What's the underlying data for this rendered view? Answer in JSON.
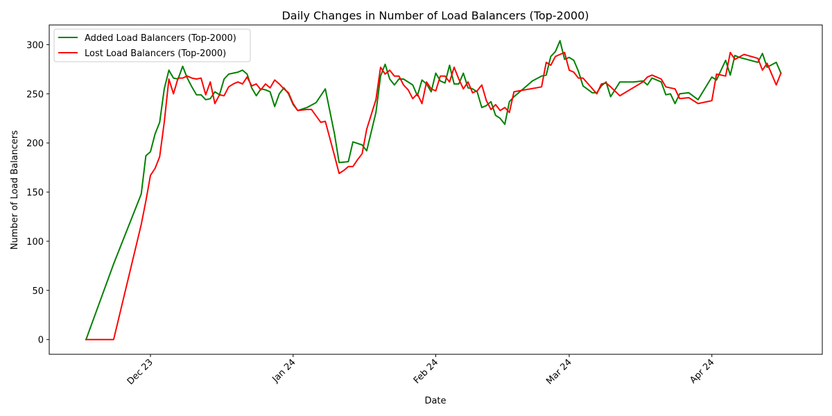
{
  "chart_data": {
    "type": "line",
    "title": "Daily Changes in Number of Load Balancers (Top-2000)",
    "xlabel": "Date",
    "ylabel": "Number of Load Balancers",
    "grid": false,
    "legend_position": "top-left",
    "xlim": [
      "2023-11-09",
      "2024-04-25"
    ],
    "ylim": [
      -15,
      320
    ],
    "x_ticks": [
      {
        "date": "2023-12-01",
        "label": "Dec 23"
      },
      {
        "date": "2024-01-01",
        "label": "Jan 24"
      },
      {
        "date": "2024-02-01",
        "label": "Feb 24"
      },
      {
        "date": "2024-03-01",
        "label": "Mar 24"
      },
      {
        "date": "2024-04-01",
        "label": "Apr 24"
      }
    ],
    "y_ticks": [
      0,
      50,
      100,
      150,
      200,
      250,
      300
    ],
    "series": [
      {
        "name": "Added Load Balancers (Top-2000)",
        "color": "#008000",
        "points": [
          [
            "2023-11-17",
            0
          ],
          [
            "2023-11-23",
            77
          ],
          [
            "2023-11-29",
            148
          ],
          [
            "2023-11-30",
            187
          ],
          [
            "2023-12-01",
            191
          ],
          [
            "2023-12-02",
            209
          ],
          [
            "2023-12-03",
            221
          ],
          [
            "2023-12-04",
            255
          ],
          [
            "2023-12-05",
            274
          ],
          [
            "2023-12-06",
            266
          ],
          [
            "2023-12-07",
            265
          ],
          [
            "2023-12-08",
            278
          ],
          [
            "2023-12-09",
            266
          ],
          [
            "2023-12-10",
            257
          ],
          [
            "2023-12-11",
            249
          ],
          [
            "2023-12-12",
            249
          ],
          [
            "2023-12-13",
            244
          ],
          [
            "2023-12-14",
            245
          ],
          [
            "2023-12-15",
            252
          ],
          [
            "2023-12-16",
            249
          ],
          [
            "2023-12-17",
            265
          ],
          [
            "2023-12-18",
            270
          ],
          [
            "2023-12-19",
            271
          ],
          [
            "2023-12-20",
            272
          ],
          [
            "2023-12-21",
            274
          ],
          [
            "2023-12-22",
            270
          ],
          [
            "2023-12-23",
            256
          ],
          [
            "2023-12-24",
            248
          ],
          [
            "2023-12-25",
            255
          ],
          [
            "2023-12-26",
            254
          ],
          [
            "2023-12-27",
            252
          ],
          [
            "2023-12-28",
            237
          ],
          [
            "2023-12-29",
            250
          ],
          [
            "2023-12-30",
            256
          ],
          [
            "2023-12-31",
            250
          ],
          [
            "2024-01-01",
            239
          ],
          [
            "2024-01-02",
            233
          ],
          [
            "2024-01-04",
            236
          ],
          [
            "2024-01-06",
            241
          ],
          [
            "2024-01-08",
            255
          ],
          [
            "2024-01-10",
            209
          ],
          [
            "2024-01-11",
            180
          ],
          [
            "2024-01-13",
            181
          ],
          [
            "2024-01-14",
            201
          ],
          [
            "2024-01-16",
            198
          ],
          [
            "2024-01-17",
            192
          ],
          [
            "2024-01-19",
            231
          ],
          [
            "2024-01-20",
            268
          ],
          [
            "2024-01-21",
            280
          ],
          [
            "2024-01-22",
            265
          ],
          [
            "2024-01-23",
            259
          ],
          [
            "2024-01-24",
            265
          ],
          [
            "2024-01-25",
            265
          ],
          [
            "2024-01-27",
            259
          ],
          [
            "2024-01-28",
            248
          ],
          [
            "2024-01-29",
            264
          ],
          [
            "2024-01-30",
            260
          ],
          [
            "2024-01-31",
            252
          ],
          [
            "2024-02-01",
            271
          ],
          [
            "2024-02-02",
            263
          ],
          [
            "2024-02-03",
            261
          ],
          [
            "2024-02-04",
            279
          ],
          [
            "2024-02-05",
            260
          ],
          [
            "2024-02-06",
            260
          ],
          [
            "2024-02-07",
            271
          ],
          [
            "2024-02-08",
            256
          ],
          [
            "2024-02-09",
            255
          ],
          [
            "2024-02-10",
            252
          ],
          [
            "2024-02-11",
            236
          ],
          [
            "2024-02-12",
            238
          ],
          [
            "2024-02-13",
            242
          ],
          [
            "2024-02-14",
            228
          ],
          [
            "2024-02-15",
            225
          ],
          [
            "2024-02-16",
            219
          ],
          [
            "2024-02-17",
            242
          ],
          [
            "2024-02-18",
            247
          ],
          [
            "2024-02-20",
            255
          ],
          [
            "2024-02-22",
            263
          ],
          [
            "2024-02-24",
            268
          ],
          [
            "2024-02-25",
            269
          ],
          [
            "2024-02-26",
            288
          ],
          [
            "2024-02-27",
            293
          ],
          [
            "2024-02-28",
            304
          ],
          [
            "2024-02-29",
            285
          ],
          [
            "2024-03-01",
            287
          ],
          [
            "2024-03-02",
            284
          ],
          [
            "2024-03-03",
            273
          ],
          [
            "2024-03-04",
            258
          ],
          [
            "2024-03-06",
            251
          ],
          [
            "2024-03-07",
            251
          ],
          [
            "2024-03-08",
            258
          ],
          [
            "2024-03-09",
            262
          ],
          [
            "2024-03-10",
            247
          ],
          [
            "2024-03-12",
            262
          ],
          [
            "2024-03-15",
            262
          ],
          [
            "2024-03-17",
            263
          ],
          [
            "2024-03-18",
            259
          ],
          [
            "2024-03-19",
            266
          ],
          [
            "2024-03-21",
            262
          ],
          [
            "2024-03-22",
            249
          ],
          [
            "2024-03-23",
            250
          ],
          [
            "2024-03-24",
            240
          ],
          [
            "2024-03-25",
            250
          ],
          [
            "2024-03-27",
            251
          ],
          [
            "2024-03-29",
            244
          ],
          [
            "2024-04-01",
            267
          ],
          [
            "2024-04-02",
            264
          ],
          [
            "2024-04-04",
            284
          ],
          [
            "2024-04-05",
            269
          ],
          [
            "2024-04-06",
            289
          ],
          [
            "2024-04-07",
            287
          ],
          [
            "2024-04-11",
            282
          ],
          [
            "2024-04-12",
            291
          ],
          [
            "2024-04-13",
            277
          ],
          [
            "2024-04-15",
            282
          ],
          [
            "2024-04-16",
            271
          ]
        ]
      },
      {
        "name": "Lost Load Balancers (Top-2000)",
        "color": "#ff0000",
        "points": [
          [
            "2023-11-17",
            0
          ],
          [
            "2023-11-23",
            0
          ],
          [
            "2023-11-29",
            117
          ],
          [
            "2023-11-30",
            141
          ],
          [
            "2023-12-01",
            167
          ],
          [
            "2023-12-02",
            174
          ],
          [
            "2023-12-03",
            186
          ],
          [
            "2023-12-04",
            221
          ],
          [
            "2023-12-05",
            265
          ],
          [
            "2023-12-06",
            250
          ],
          [
            "2023-12-07",
            266
          ],
          [
            "2023-12-08",
            266
          ],
          [
            "2023-12-09",
            268
          ],
          [
            "2023-12-10",
            266
          ],
          [
            "2023-12-11",
            265
          ],
          [
            "2023-12-12",
            266
          ],
          [
            "2023-12-13",
            249
          ],
          [
            "2023-12-14",
            262
          ],
          [
            "2023-12-15",
            240
          ],
          [
            "2023-12-16",
            249
          ],
          [
            "2023-12-17",
            248
          ],
          [
            "2023-12-18",
            257
          ],
          [
            "2023-12-19",
            260
          ],
          [
            "2023-12-20",
            262
          ],
          [
            "2023-12-21",
            260
          ],
          [
            "2023-12-22",
            267
          ],
          [
            "2023-12-23",
            258
          ],
          [
            "2023-12-24",
            260
          ],
          [
            "2023-12-25",
            254
          ],
          [
            "2023-12-26",
            260
          ],
          [
            "2023-12-27",
            256
          ],
          [
            "2023-12-28",
            264
          ],
          [
            "2023-12-29",
            260
          ],
          [
            "2023-12-30",
            255
          ],
          [
            "2023-12-31",
            251
          ],
          [
            "2024-01-01",
            240
          ],
          [
            "2024-01-02",
            233
          ],
          [
            "2024-01-04",
            234
          ],
          [
            "2024-01-05",
            234
          ],
          [
            "2024-01-07",
            221
          ],
          [
            "2024-01-08",
            222
          ],
          [
            "2024-01-10",
            187
          ],
          [
            "2024-01-11",
            169
          ],
          [
            "2024-01-12",
            172
          ],
          [
            "2024-01-13",
            176
          ],
          [
            "2024-01-14",
            176
          ],
          [
            "2024-01-15",
            183
          ],
          [
            "2024-01-16",
            189
          ],
          [
            "2024-01-17",
            214
          ],
          [
            "2024-01-19",
            244
          ],
          [
            "2024-01-20",
            277
          ],
          [
            "2024-01-21",
            270
          ],
          [
            "2024-01-22",
            274
          ],
          [
            "2024-01-23",
            268
          ],
          [
            "2024-01-24",
            268
          ],
          [
            "2024-01-25",
            259
          ],
          [
            "2024-01-26",
            254
          ],
          [
            "2024-01-27",
            245
          ],
          [
            "2024-01-28",
            250
          ],
          [
            "2024-01-29",
            240
          ],
          [
            "2024-01-30",
            262
          ],
          [
            "2024-01-31",
            255
          ],
          [
            "2024-02-01",
            253
          ],
          [
            "2024-02-02",
            268
          ],
          [
            "2024-02-03",
            268
          ],
          [
            "2024-02-04",
            262
          ],
          [
            "2024-02-05",
            277
          ],
          [
            "2024-02-06",
            265
          ],
          [
            "2024-02-07",
            255
          ],
          [
            "2024-02-08",
            262
          ],
          [
            "2024-02-09",
            251
          ],
          [
            "2024-02-10",
            253
          ],
          [
            "2024-02-11",
            259
          ],
          [
            "2024-02-12",
            243
          ],
          [
            "2024-02-13",
            234
          ],
          [
            "2024-02-14",
            239
          ],
          [
            "2024-02-15",
            233
          ],
          [
            "2024-02-16",
            236
          ],
          [
            "2024-02-17",
            231
          ],
          [
            "2024-02-18",
            252
          ],
          [
            "2024-02-24",
            257
          ],
          [
            "2024-02-25",
            282
          ],
          [
            "2024-02-26",
            279
          ],
          [
            "2024-02-27",
            288
          ],
          [
            "2024-02-28",
            290
          ],
          [
            "2024-02-29",
            292
          ],
          [
            "2024-03-01",
            274
          ],
          [
            "2024-03-02",
            272
          ],
          [
            "2024-03-03",
            266
          ],
          [
            "2024-03-04",
            266
          ],
          [
            "2024-03-07",
            250
          ],
          [
            "2024-03-08",
            260
          ],
          [
            "2024-03-09",
            261
          ],
          [
            "2024-03-10",
            257
          ],
          [
            "2024-03-12",
            248
          ],
          [
            "2024-03-17",
            262
          ],
          [
            "2024-03-18",
            267
          ],
          [
            "2024-03-19",
            269
          ],
          [
            "2024-03-21",
            265
          ],
          [
            "2024-03-22",
            257
          ],
          [
            "2024-03-24",
            255
          ],
          [
            "2024-03-25",
            245
          ],
          [
            "2024-03-27",
            246
          ],
          [
            "2024-03-29",
            240
          ],
          [
            "2024-04-01",
            243
          ],
          [
            "2024-04-02",
            270
          ],
          [
            "2024-04-04",
            268
          ],
          [
            "2024-04-05",
            292
          ],
          [
            "2024-04-06",
            285
          ],
          [
            "2024-04-08",
            290
          ],
          [
            "2024-04-11",
            286
          ],
          [
            "2024-04-12",
            274
          ],
          [
            "2024-04-13",
            281
          ],
          [
            "2024-04-15",
            259
          ],
          [
            "2024-04-16",
            271
          ]
        ]
      }
    ]
  }
}
